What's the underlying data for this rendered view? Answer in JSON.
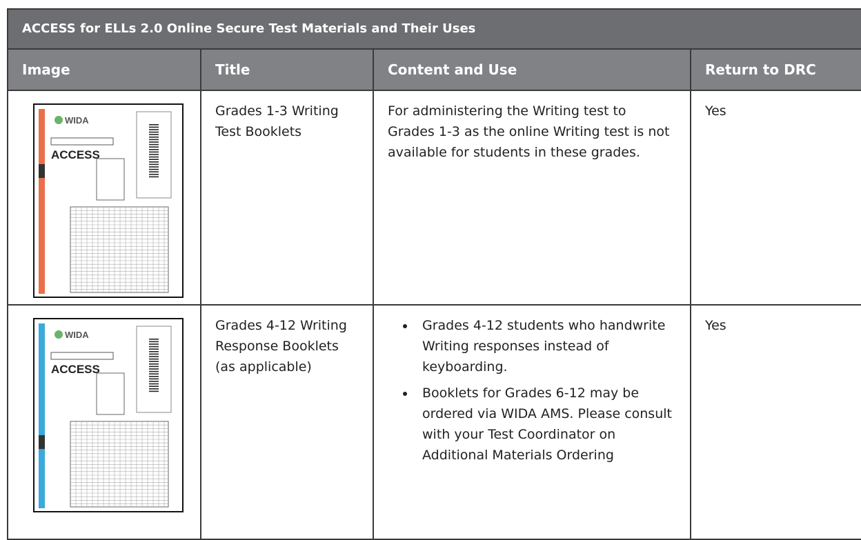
{
  "table": {
    "title": "ACCESS for ELLs 2.0 Online Secure Test Materials and Their Uses",
    "columns": [
      "Image",
      "Title",
      "Content and Use",
      "Return to DRC"
    ],
    "rows": [
      {
        "image": {
          "logo": "WIDA",
          "brand": "ACCESS"
        },
        "title": "Grades 1-3 Writing Test Booklets",
        "content": "For administering the Writing test to Grades 1-3 as the online Writing test is not available for students in these grades.",
        "return": "Yes"
      },
      {
        "image": {
          "logo": "WIDA",
          "brand": "ACCESS"
        },
        "title": "Grades 4-12 Writing Response Booklets (as applicable)",
        "bullets": [
          "Grades 4-12 students who handwrite Writing responses instead of keyboarding.",
          "Booklets for Grades 6-12 may be ordered via WIDA AMS. Please consult with your Test Coordinator on Additional Materials Ordering"
        ],
        "return": "Yes"
      }
    ]
  }
}
